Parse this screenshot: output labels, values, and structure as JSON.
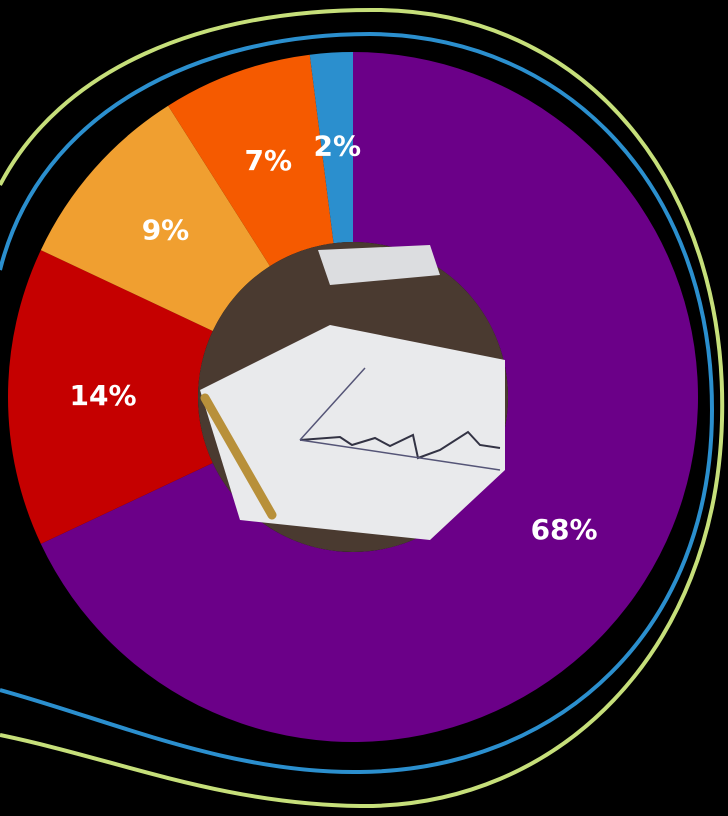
{
  "chart_data": {
    "type": "pie",
    "categories": [
      null,
      null,
      null,
      null,
      null
    ],
    "values": [
      68,
      14,
      9,
      7,
      2
    ],
    "value_labels": [
      "68%",
      "14%",
      "9%",
      "7%",
      "2%"
    ],
    "colors": [
      "#6b0088",
      "#c50000",
      "#f09f30",
      "#f55a00",
      "#2b8fce"
    ]
  }
}
